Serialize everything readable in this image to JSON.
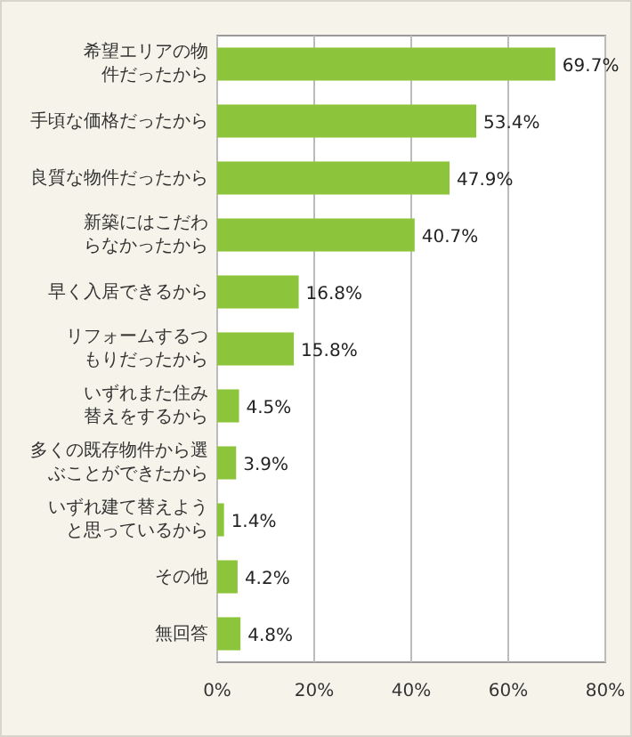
{
  "chart_data": {
    "type": "bar",
    "orientation": "horizontal",
    "categories": [
      "希望エリアの物件だったから",
      "手頃な価格だったから",
      "良質な物件だったから",
      "新築にはこだわらなかったから",
      "早く入居できるから",
      "リフォームするつもりだったから",
      "いずれまた住み替えをするから",
      "多くの既存物件から選ぶことができたから",
      "いずれ建て替えようと思っているから",
      "その他",
      "無回答"
    ],
    "values": [
      69.7,
      53.4,
      47.9,
      40.7,
      16.8,
      15.8,
      4.5,
      3.9,
      1.4,
      4.2,
      4.8
    ],
    "value_labels": [
      "69.7%",
      "53.4%",
      "47.9%",
      "40.7%",
      "16.8%",
      "15.8%",
      "4.5%",
      "3.9%",
      "1.4%",
      "4.2%",
      "4.8%"
    ],
    "color": "#8cc43c",
    "xlim": [
      0,
      80
    ],
    "xticks": [
      {
        "value": 0,
        "label": "0%"
      },
      {
        "value": 20,
        "label": "20%"
      },
      {
        "value": 40,
        "label": "40%"
      },
      {
        "value": 60,
        "label": "60%"
      },
      {
        "value": 80,
        "label": "80%"
      }
    ],
    "grid": "x"
  }
}
